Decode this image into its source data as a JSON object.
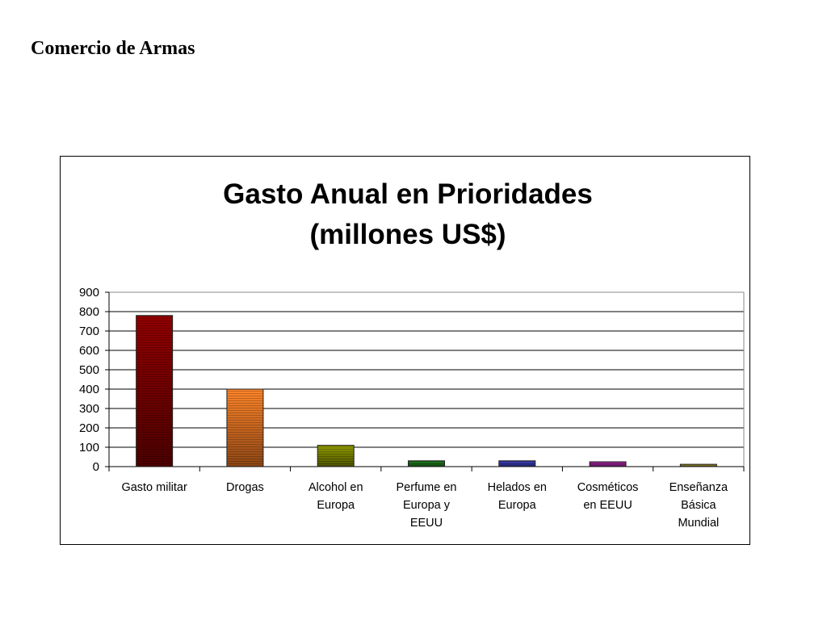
{
  "page": {
    "title": "Comercio de Armas"
  },
  "chart_data": {
    "type": "bar",
    "title_lines": [
      "Gasto Anual en Prioridades",
      "(millones US$)"
    ],
    "categories": [
      [
        "Gasto militar"
      ],
      [
        "Drogas"
      ],
      [
        "Alcohol en",
        "Europa"
      ],
      [
        "Perfume en",
        "Europa y",
        "EEUU"
      ],
      [
        "Helados en",
        "Europa"
      ],
      [
        "Cosméticos",
        "en EEUU"
      ],
      [
        "Enseñanza",
        "Básica",
        "Mundial"
      ]
    ],
    "values": [
      780,
      400,
      110,
      30,
      30,
      25,
      12
    ],
    "colors": [
      "#8B0000",
      "#FF7F27",
      "#8B9400",
      "#1E7B1E",
      "#3B3FB8",
      "#A0229E",
      "#9C8A2E"
    ],
    "ylim": [
      0,
      900
    ],
    "yticks": [
      0,
      100,
      200,
      300,
      400,
      500,
      600,
      700,
      800,
      900
    ],
    "grid": true,
    "xlabel": "",
    "ylabel": ""
  }
}
